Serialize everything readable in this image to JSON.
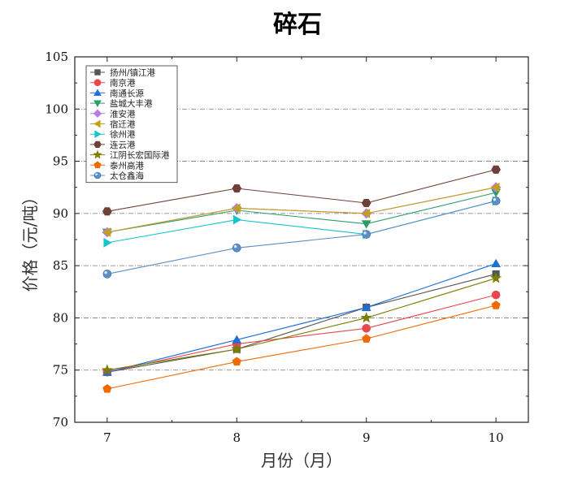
{
  "chart_data": {
    "type": "line",
    "title": "碎石",
    "xlabel": "月份（月）",
    "ylabel": "价格（元/吨）",
    "x": [
      7,
      8,
      9,
      10
    ],
    "xlim": [
      6.75,
      10.25
    ],
    "ylim": [
      70,
      105
    ],
    "xticks": [
      7,
      8,
      9,
      10
    ],
    "yticks": [
      70,
      75,
      80,
      85,
      90,
      95,
      100,
      105
    ],
    "grid": "horizontal dash-dot",
    "legend_position": "top-left",
    "series": [
      {
        "name": "扬州/镇江港",
        "marker": "square",
        "color": "#555555",
        "values": [
          74.8,
          77,
          81,
          84.2
        ]
      },
      {
        "name": "南京港",
        "marker": "circle",
        "color": "#e8474f",
        "values": [
          74.8,
          77.5,
          79,
          82.2
        ]
      },
      {
        "name": "南通长源",
        "marker": "triangle-up",
        "color": "#1f6fd6",
        "values": [
          74.8,
          77.9,
          81,
          85.2
        ]
      },
      {
        "name": "盐城大丰港",
        "marker": "triangle-down",
        "color": "#2a9d6a",
        "values": [
          88.2,
          90.3,
          89,
          92
        ]
      },
      {
        "name": "淮安港",
        "marker": "diamond",
        "color": "#b57be8",
        "values": [
          88.2,
          90.5,
          90,
          92.5
        ]
      },
      {
        "name": "宿迁港",
        "marker": "triangle-left",
        "color": "#c3a017",
        "values": [
          88.2,
          90.5,
          90,
          92.5
        ]
      },
      {
        "name": "徐州港",
        "marker": "triangle-right",
        "color": "#17c4cc",
        "values": [
          87.2,
          89.4,
          88,
          91.2
        ]
      },
      {
        "name": "连云港",
        "marker": "hexagon",
        "color": "#6e4038",
        "values": [
          90.2,
          92.4,
          91,
          94.2
        ]
      },
      {
        "name": "江阴长宏国际港",
        "marker": "star",
        "color": "#7d7d00",
        "values": [
          75,
          77,
          80,
          83.8
        ]
      },
      {
        "name": "泰州高港",
        "marker": "pentagon",
        "color": "#f06a00",
        "values": [
          73.2,
          75.8,
          78,
          81.2
        ]
      },
      {
        "name": "太仓鑫海",
        "marker": "sphere",
        "color": "#5b8fc9",
        "values": [
          84.2,
          86.7,
          88,
          91.2
        ]
      }
    ]
  }
}
